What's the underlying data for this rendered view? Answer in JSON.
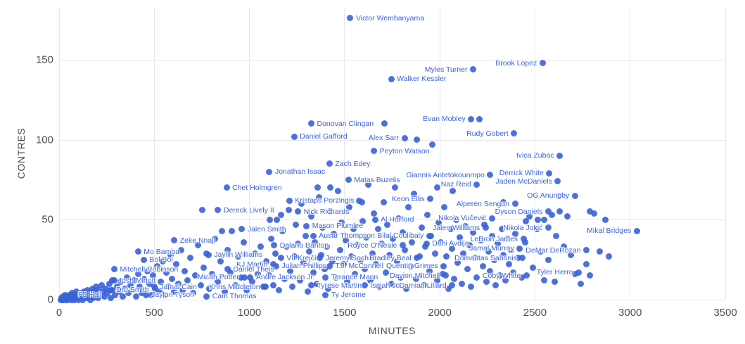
{
  "chart_data": {
    "type": "scatter",
    "title": "",
    "xlabel": "MINUTES",
    "ylabel": "CONTRES",
    "xlim": [
      0,
      3500
    ],
    "ylim": [
      0,
      183
    ],
    "x_ticks": [
      0,
      500,
      1000,
      1500,
      2000,
      2500,
      3000,
      3500
    ],
    "y_ticks": [
      0,
      50,
      100,
      150
    ],
    "grid": true,
    "legend": "none",
    "point_color": "#3a62d8",
    "label_color": "#3a62d8",
    "grid_color": "#e8e8e8",
    "axis_text_color": "#4d4d4d",
    "background_color": "#ffffff",
    "labeled_points_columns": [
      "name",
      "minutes",
      "blocks",
      "label_side"
    ],
    "labeled_points": [
      [
        "Victor Wembanyama",
        1530,
        176,
        "right"
      ],
      [
        "Brook Lopez",
        2540,
        148,
        "left"
      ],
      [
        "Myles Turner",
        2175,
        144,
        "left"
      ],
      [
        "Walker Kessler",
        1745,
        138,
        "right"
      ],
      [
        "Evan Mobley",
        2165,
        113,
        "left"
      ],
      [
        "Donovan Clingan",
        1325,
        110,
        "right"
      ],
      [
        "Rudy Gobert",
        2390,
        104,
        "left"
      ],
      [
        "Daniel Gafford",
        1235,
        102,
        "right"
      ],
      [
        "Alex Sarr",
        1815,
        101,
        "left"
      ],
      [
        "Peyton Watson",
        1655,
        93,
        "right"
      ],
      [
        "Ivica Zubac",
        2630,
        90,
        "left"
      ],
      [
        "Zach Edey",
        1420,
        85,
        "right"
      ],
      [
        "Jonathan Isaac",
        1105,
        80,
        "right"
      ],
      [
        "Derrick White",
        2575,
        79,
        "left"
      ],
      [
        "Giannis Antetokounmpo",
        2265,
        78,
        "left"
      ],
      [
        "Matas Buzelis",
        1520,
        75,
        "right"
      ],
      [
        "Jaden McDaniels",
        2620,
        74,
        "left"
      ],
      [
        "Naz Reid",
        2195,
        72,
        "left"
      ],
      [
        "Chet Holmgren",
        880,
        70,
        "right"
      ],
      [
        "OG Anunoby",
        2710,
        65,
        "left"
      ],
      [
        "Keon Ellis",
        1950,
        63,
        "left"
      ],
      [
        "Kristaps Porzingis",
        1210,
        62,
        "right"
      ],
      [
        "Alperen Sengun",
        2395,
        60,
        "left"
      ],
      [
        "Dereck Lively II",
        835,
        56,
        "right"
      ],
      [
        "Nick Richards",
        1255,
        55,
        "right"
      ],
      [
        "Dyson Daniels",
        2570,
        55,
        "left"
      ],
      [
        "Nikola Vučević",
        2275,
        51,
        "left"
      ],
      [
        "Al Horford",
        1660,
        50,
        "right"
      ],
      [
        "Mason Plumlee",
        1300,
        46,
        "right"
      ],
      [
        "Jalen Williams",
        2240,
        45,
        "left"
      ],
      [
        "Nikola Jokić",
        2570,
        45,
        "left"
      ],
      [
        "Jalen Smith",
        960,
        44,
        "right"
      ],
      [
        "Mikal Bridges",
        3035,
        43,
        "left"
      ],
      [
        "Bilal Coulibaly",
        1945,
        40,
        "left"
      ],
      [
        "Ausar Thompson",
        1335,
        40,
        "right"
      ],
      [
        "LeBron James",
        2440,
        38,
        "left"
      ],
      [
        "Zeke Nnaji",
        605,
        37,
        "right"
      ],
      [
        "Deni Avdija",
        1930,
        35,
        "right"
      ],
      [
        "Dalano Banton",
        1130,
        34,
        "right"
      ],
      [
        "Royce O'Neale",
        1805,
        34,
        "left"
      ],
      [
        "Jamal Murray",
        2420,
        32,
        "left"
      ],
      [
        "DeMar DeRozan",
        2770,
        31,
        "left"
      ],
      [
        "Mo Bamba",
        415,
        30,
        "right"
      ],
      [
        "Jaylin Williams",
        785,
        28,
        "right"
      ],
      [
        "Jeremy Sochan",
        1370,
        26,
        "right"
      ],
      [
        "Bradley Beal",
        1880,
        26,
        "left"
      ],
      [
        "Vít Krejčí",
        1165,
        26,
        "right"
      ],
      [
        "Domantas Sabonis",
        2435,
        26,
        "left"
      ],
      [
        "Bol Bol",
        445,
        25,
        "right"
      ],
      [
        "KJ Martin",
        1125,
        22,
        "left"
      ],
      [
        "T.J. McConnell",
        1420,
        21,
        "right"
      ],
      [
        "Julian Phillips",
        1140,
        21,
        "right"
      ],
      [
        "Quentin Grimes",
        2020,
        21,
        "left"
      ],
      [
        "Mitchell Robinson",
        290,
        19,
        "right"
      ],
      [
        "Daniel Theis",
        885,
        19,
        "right"
      ],
      [
        "Tyler Herro",
        2730,
        17,
        "left"
      ],
      [
        "Davion Mitchell",
        2030,
        15,
        "left"
      ],
      [
        "Coby White",
        2455,
        15,
        "left"
      ],
      [
        "Terance Mann",
        1400,
        14,
        "right"
      ],
      [
        "Micah Potter",
        975,
        14,
        "left"
      ],
      [
        "Andre Jackson Jr.",
        1005,
        14,
        "right"
      ],
      [
        "Josh Minott",
        280,
        12,
        "right"
      ],
      [
        "Tyrese Martin",
        1325,
        9,
        "right"
      ],
      [
        "Isaiah Joe",
        1605,
        9,
        "right"
      ],
      [
        "Damian Lillard",
        2065,
        9,
        "left"
      ],
      [
        "Jamal Cain",
        500,
        8,
        "right"
      ],
      [
        "Khris Middleton",
        1085,
        8,
        "left"
      ],
      [
        "Dru Smith",
        270,
        6,
        "right"
      ],
      [
        "PJ Hall",
        70,
        3,
        "right"
      ],
      [
        "Jaylon Tyson",
        455,
        3,
        "right"
      ],
      [
        "Ty Jerome",
        1400,
        3,
        "right"
      ],
      [
        "Cam Thomas",
        775,
        2,
        "right"
      ]
    ],
    "background_points": [
      [
        8,
        0
      ],
      [
        12,
        1
      ],
      [
        16,
        0
      ],
      [
        20,
        2
      ],
      [
        24,
        0
      ],
      [
        28,
        1
      ],
      [
        32,
        3
      ],
      [
        36,
        0
      ],
      [
        40,
        2
      ],
      [
        44,
        1
      ],
      [
        48,
        0
      ],
      [
        52,
        3
      ],
      [
        56,
        1
      ],
      [
        60,
        2
      ],
      [
        64,
        0
      ],
      [
        68,
        4
      ],
      [
        72,
        1
      ],
      [
        76,
        2
      ],
      [
        80,
        0
      ],
      [
        84,
        3
      ],
      [
        88,
        1
      ],
      [
        92,
        5
      ],
      [
        96,
        2
      ],
      [
        100,
        0
      ],
      [
        105,
        3
      ],
      [
        110,
        1
      ],
      [
        115,
        4
      ],
      [
        120,
        2
      ],
      [
        125,
        0
      ],
      [
        130,
        5
      ],
      [
        135,
        2
      ],
      [
        140,
        3
      ],
      [
        145,
        1
      ],
      [
        150,
        6
      ],
      [
        155,
        2
      ],
      [
        160,
        4
      ],
      [
        165,
        0
      ],
      [
        170,
        3
      ],
      [
        175,
        7
      ],
      [
        180,
        1
      ],
      [
        185,
        5
      ],
      [
        190,
        2
      ],
      [
        195,
        8
      ],
      [
        200,
        4
      ],
      [
        205,
        1
      ],
      [
        210,
        6
      ],
      [
        215,
        3
      ],
      [
        225,
        9
      ],
      [
        230,
        5
      ],
      [
        240,
        2
      ],
      [
        245,
        7
      ],
      [
        255,
        4
      ],
      [
        265,
        10
      ],
      [
        270,
        1
      ],
      [
        280,
        6
      ],
      [
        290,
        12
      ],
      [
        295,
        3
      ],
      [
        305,
        8
      ],
      [
        315,
        5
      ],
      [
        325,
        11
      ],
      [
        335,
        2
      ],
      [
        345,
        7
      ],
      [
        355,
        14
      ],
      [
        365,
        4
      ],
      [
        375,
        9
      ],
      [
        385,
        6
      ],
      [
        395,
        12
      ],
      [
        405,
        2
      ],
      [
        415,
        16
      ],
      [
        425,
        8
      ],
      [
        435,
        4
      ],
      [
        445,
        13
      ],
      [
        455,
        6
      ],
      [
        465,
        18
      ],
      [
        475,
        10
      ],
      [
        485,
        3
      ],
      [
        495,
        15
      ],
      [
        505,
        7
      ],
      [
        515,
        21
      ],
      [
        525,
        5
      ],
      [
        535,
        11
      ],
      [
        545,
        24
      ],
      [
        555,
        3
      ],
      [
        565,
        17
      ],
      [
        575,
        8
      ],
      [
        585,
        28
      ],
      [
        595,
        13
      ],
      [
        605,
        5
      ],
      [
        615,
        22
      ],
      [
        625,
        10
      ],
      [
        640,
        31
      ],
      [
        650,
        6
      ],
      [
        660,
        18
      ],
      [
        675,
        12
      ],
      [
        690,
        26
      ],
      [
        705,
        4
      ],
      [
        715,
        15
      ],
      [
        730,
        34
      ],
      [
        745,
        9
      ],
      [
        751,
        56
      ],
      [
        760,
        20
      ],
      [
        775,
        29
      ],
      [
        790,
        7
      ],
      [
        805,
        16
      ],
      [
        820,
        38
      ],
      [
        835,
        11
      ],
      [
        850,
        24
      ],
      [
        857,
        43
      ],
      [
        870,
        5
      ],
      [
        885,
        31
      ],
      [
        900,
        17
      ],
      [
        909,
        43
      ],
      [
        925,
        9
      ],
      [
        940,
        27
      ],
      [
        955,
        14
      ],
      [
        970,
        36
      ],
      [
        985,
        6
      ],
      [
        1000,
        20
      ],
      [
        1015,
        11
      ],
      [
        1030,
        29
      ],
      [
        1045,
        16
      ],
      [
        1060,
        33
      ],
      [
        1075,
        8
      ],
      [
        1090,
        24
      ],
      [
        1105,
        15
      ],
      [
        1106,
        50
      ],
      [
        1115,
        38
      ],
      [
        1125,
        9
      ],
      [
        1135,
        29
      ],
      [
        1145,
        50
      ],
      [
        1155,
        6
      ],
      [
        1165,
        53
      ],
      [
        1175,
        43
      ],
      [
        1185,
        13
      ],
      [
        1195,
        33
      ],
      [
        1205,
        56
      ],
      [
        1215,
        18
      ],
      [
        1225,
        8
      ],
      [
        1235,
        27
      ],
      [
        1245,
        47
      ],
      [
        1255,
        35
      ],
      [
        1265,
        12
      ],
      [
        1275,
        60
      ],
      [
        1285,
        23
      ],
      [
        1295,
        40
      ],
      [
        1305,
        5
      ],
      [
        1315,
        30
      ],
      [
        1325,
        52
      ],
      [
        1335,
        17
      ],
      [
        1345,
        36
      ],
      [
        1355,
        10
      ],
      [
        1360,
        70
      ],
      [
        1365,
        64
      ],
      [
        1375,
        28
      ],
      [
        1385,
        45
      ],
      [
        1395,
        19
      ],
      [
        1405,
        33
      ],
      [
        1415,
        7
      ],
      [
        1424,
        70
      ],
      [
        1425,
        55
      ],
      [
        1435,
        24
      ],
      [
        1445,
        41
      ],
      [
        1455,
        14
      ],
      [
        1465,
        68
      ],
      [
        1475,
        31
      ],
      [
        1485,
        48
      ],
      [
        1495,
        22
      ],
      [
        1505,
        37
      ],
      [
        1515,
        11
      ],
      [
        1525,
        58
      ],
      [
        1535,
        27
      ],
      [
        1545,
        44
      ],
      [
        1555,
        16
      ],
      [
        1565,
        34
      ],
      [
        1575,
        62
      ],
      [
        1585,
        25
      ],
      [
        1592,
        61
      ],
      [
        1595,
        49
      ],
      [
        1605,
        19
      ],
      [
        1615,
        39
      ],
      [
        1625,
        72
      ],
      [
        1635,
        12
      ],
      [
        1645,
        29
      ],
      [
        1655,
        54
      ],
      [
        1665,
        22
      ],
      [
        1675,
        44
      ],
      [
        1685,
        8
      ],
      [
        1695,
        35
      ],
      [
        1705,
        61
      ],
      [
        1710,
        110
      ],
      [
        1715,
        17
      ],
      [
        1725,
        47
      ],
      [
        1735,
        28
      ],
      [
        1745,
        10
      ],
      [
        1755,
        38
      ],
      [
        1765,
        70
      ],
      [
        1775,
        24
      ],
      [
        1785,
        51
      ],
      [
        1795,
        14
      ],
      [
        1805,
        42
      ],
      [
        1815,
        31
      ],
      [
        1825,
        7
      ],
      [
        1835,
        58
      ],
      [
        1845,
        21
      ],
      [
        1855,
        36
      ],
      [
        1865,
        66
      ],
      [
        1875,
        13
      ],
      [
        1880,
        100
      ],
      [
        1895,
        27
      ],
      [
        1905,
        45
      ],
      [
        1915,
        9
      ],
      [
        1925,
        33
      ],
      [
        1935,
        53
      ],
      [
        1945,
        18
      ],
      [
        1955,
        40
      ],
      [
        1962,
        97
      ],
      [
        1975,
        29
      ],
      [
        1985,
        12
      ],
      [
        1988,
        70
      ],
      [
        1995,
        48
      ],
      [
        2005,
        36
      ],
      [
        2015,
        16
      ],
      [
        2025,
        58
      ],
      [
        2035,
        27
      ],
      [
        2045,
        7
      ],
      [
        2055,
        44
      ],
      [
        2065,
        32
      ],
      [
        2069,
        68
      ],
      [
        2075,
        13
      ],
      [
        2085,
        50
      ],
      [
        2095,
        23
      ],
      [
        2105,
        39
      ],
      [
        2115,
        10
      ],
      [
        2125,
        29
      ],
      [
        2135,
        46
      ],
      [
        2145,
        19
      ],
      [
        2155,
        34
      ],
      [
        2165,
        8
      ],
      [
        2175,
        42
      ],
      [
        2185,
        26
      ],
      [
        2195,
        14
      ],
      [
        2209,
        113
      ],
      [
        2215,
        37
      ],
      [
        2225,
        21
      ],
      [
        2235,
        47
      ],
      [
        2245,
        11
      ],
      [
        2255,
        30
      ],
      [
        2265,
        18
      ],
      [
        2275,
        40
      ],
      [
        2285,
        25
      ],
      [
        2295,
        9
      ],
      [
        2305,
        35
      ],
      [
        2315,
        15
      ],
      [
        2325,
        44
      ],
      [
        2334,
        61
      ],
      [
        2335,
        28
      ],
      [
        2345,
        12
      ],
      [
        2355,
        38
      ],
      [
        2365,
        22
      ],
      [
        2375,
        31
      ],
      [
        2385,
        17
      ],
      [
        2395,
        41
      ],
      [
        2410,
        26
      ],
      [
        2430,
        14
      ],
      [
        2450,
        36
      ],
      [
        2453,
        49
      ],
      [
        2470,
        52
      ],
      [
        2490,
        20
      ],
      [
        2510,
        44
      ],
      [
        2516,
        50
      ],
      [
        2530,
        30
      ],
      [
        2549,
        50
      ],
      [
        2550,
        12
      ],
      [
        2570,
        25
      ],
      [
        2590,
        53
      ],
      [
        2605,
        11
      ],
      [
        2610,
        40
      ],
      [
        2625,
        65
      ],
      [
        2630,
        55
      ],
      [
        2650,
        33
      ],
      [
        2670,
        52
      ],
      [
        2690,
        28
      ],
      [
        2710,
        16
      ],
      [
        2740,
        10
      ],
      [
        2770,
        22
      ],
      [
        2789,
        55
      ],
      [
        2790,
        15
      ],
      [
        2810,
        54
      ],
      [
        2840,
        30
      ],
      [
        2870,
        50
      ],
      [
        2890,
        27
      ]
    ]
  }
}
